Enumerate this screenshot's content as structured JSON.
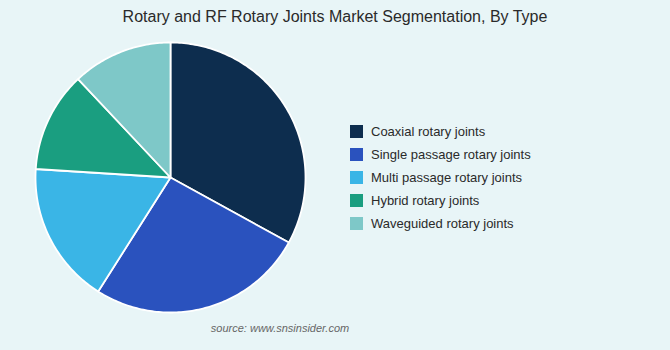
{
  "chart_data": {
    "type": "pie",
    "title": "Rotary and RF Rotary Joints Market Segmentation, By Type",
    "categories": [
      "Coaxial rotary joints",
      "Single passage rotary joints",
      "Multi passage rotary joints",
      "Hybrid rotary joints",
      "Waveguided rotary joints"
    ],
    "values": [
      33,
      26,
      17,
      12,
      12
    ],
    "colors": [
      "#0d2d4e",
      "#2a52be",
      "#3ab5e6",
      "#1a9e80",
      "#7ec8c8"
    ],
    "legend": "right",
    "annotations": [
      "source: www.snsinsider.com"
    ]
  }
}
